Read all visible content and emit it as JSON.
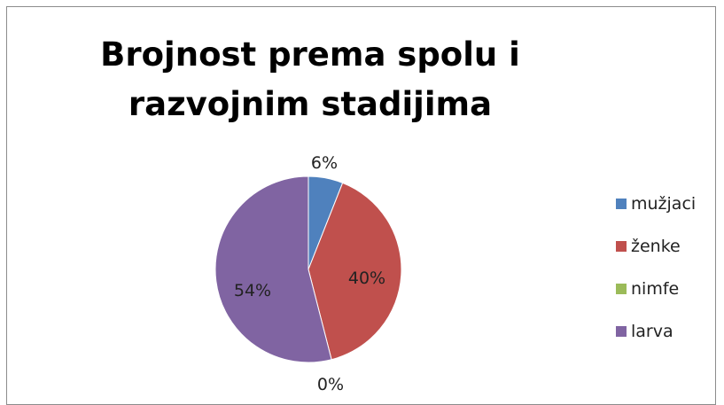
{
  "chart_data": {
    "type": "pie",
    "title_lines": [
      "Brojnost prema spolu i",
      "razvojnim stadijima"
    ],
    "categories": [
      "mužjaci",
      "ženke",
      "nimfe",
      "larva"
    ],
    "values": [
      6,
      40,
      0,
      54
    ],
    "labels": [
      "6%",
      "40%",
      "0%",
      "54%"
    ],
    "colors": [
      "#4f81bd",
      "#c0504d",
      "#9bbb59",
      "#8064a2"
    ],
    "legend_position": "right"
  }
}
